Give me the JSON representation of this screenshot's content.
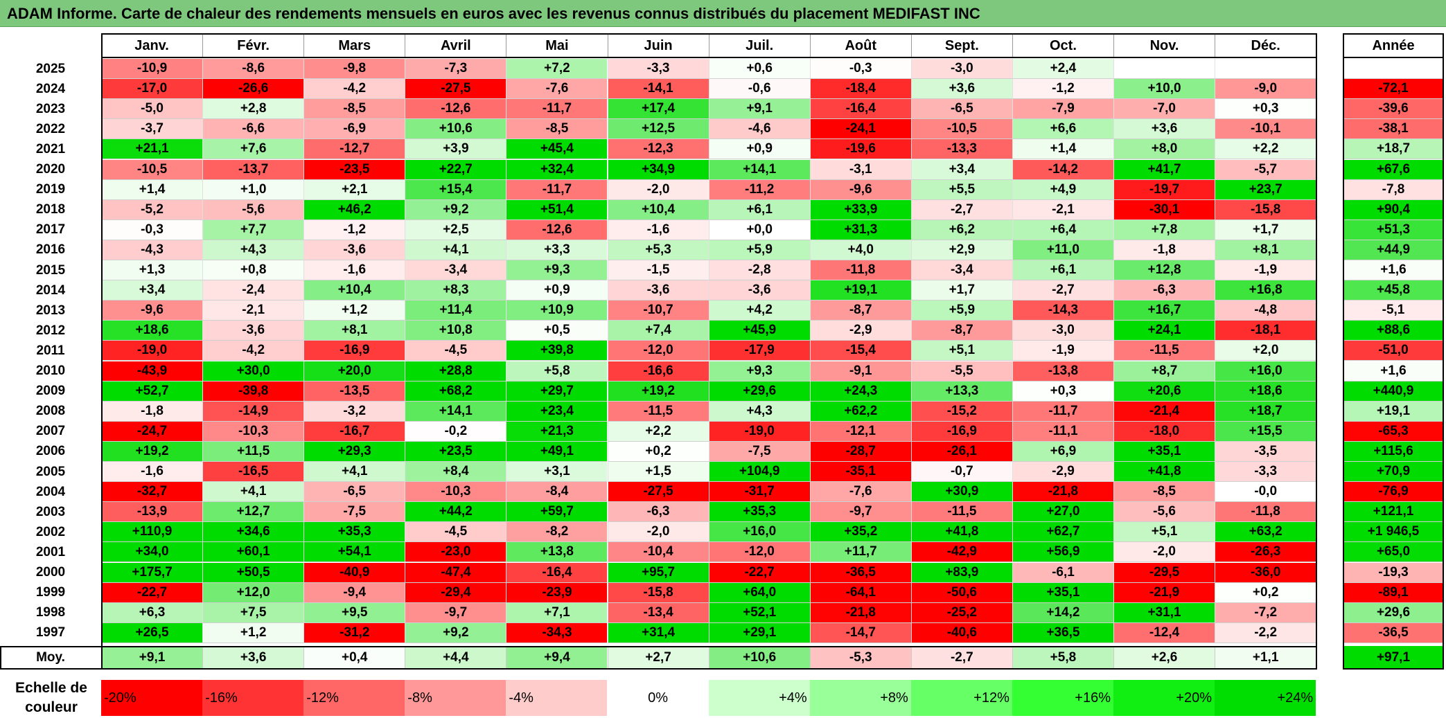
{
  "title": "ADAM Informe. Carte de chaleur des rendements mensuels en euros avec les revenus connus distribués du placement MEDIFAST INC",
  "chart_data": {
    "type": "heatmap",
    "title": "ADAM Informe. Carte de chaleur des rendements mensuels en euros avec les revenus connus distribués du placement MEDIFAST INC",
    "columns": [
      "Janv.",
      "Févr.",
      "Mars",
      "Avril",
      "Mai",
      "Juin",
      "Juil.",
      "Août",
      "Sept.",
      "Oct.",
      "Nov.",
      "Déc."
    ],
    "year_column": "Année",
    "rows": [
      {
        "year": "2025",
        "values": [
          "-10,9",
          "-8,6",
          "-9,8",
          "-7,3",
          "+7,2",
          "-3,3",
          "+0,6",
          "-0,3",
          "-3,0",
          "+2,4",
          "",
          ""
        ],
        "annual": ""
      },
      {
        "year": "2024",
        "values": [
          "-17,0",
          "-26,6",
          "-4,2",
          "-27,5",
          "-7,6",
          "-14,1",
          "-0,6",
          "-18,4",
          "+3,6",
          "-1,2",
          "+10,0",
          "-9,0"
        ],
        "annual": "-72,1"
      },
      {
        "year": "2023",
        "values": [
          "-5,0",
          "+2,8",
          "-8,5",
          "-12,6",
          "-11,7",
          "+17,4",
          "+9,1",
          "-16,4",
          "-6,5",
          "-7,9",
          "-7,0",
          "+0,3"
        ],
        "annual": "-39,6"
      },
      {
        "year": "2022",
        "values": [
          "-3,7",
          "-6,6",
          "-6,9",
          "+10,6",
          "-8,5",
          "+12,5",
          "-4,6",
          "-24,1",
          "-10,5",
          "+6,6",
          "+3,6",
          "-10,1"
        ],
        "annual": "-38,1"
      },
      {
        "year": "2021",
        "values": [
          "+21,1",
          "+7,6",
          "-12,7",
          "+3,9",
          "+45,4",
          "-12,3",
          "+0,9",
          "-19,6",
          "-13,3",
          "+1,4",
          "+8,0",
          "+2,2"
        ],
        "annual": "+18,7"
      },
      {
        "year": "2020",
        "values": [
          "-10,5",
          "-13,7",
          "-23,5",
          "+22,7",
          "+32,4",
          "+34,9",
          "+14,1",
          "-3,1",
          "+3,4",
          "-14,2",
          "+41,7",
          "-5,7"
        ],
        "annual": "+67,6"
      },
      {
        "year": "2019",
        "values": [
          "+1,4",
          "+1,0",
          "+2,1",
          "+15,4",
          "-11,7",
          "-2,0",
          "-11,2",
          "-9,6",
          "+5,5",
          "+4,9",
          "-19,7",
          "+23,7"
        ],
        "annual": "-7,8"
      },
      {
        "year": "2018",
        "values": [
          "-5,2",
          "-5,6",
          "+46,2",
          "+9,2",
          "+51,4",
          "+10,4",
          "+6,1",
          "+33,9",
          "-2,7",
          "-2,1",
          "-30,1",
          "-15,8"
        ],
        "annual": "+90,4"
      },
      {
        "year": "2017",
        "values": [
          "-0,3",
          "+7,7",
          "-1,2",
          "+2,5",
          "-12,6",
          "-1,6",
          "+0,0",
          "+31,3",
          "+6,2",
          "+6,4",
          "+7,8",
          "+1,7"
        ],
        "annual": "+51,3"
      },
      {
        "year": "2016",
        "values": [
          "-4,3",
          "+4,3",
          "-3,6",
          "+4,1",
          "+3,3",
          "+5,3",
          "+5,9",
          "+4,0",
          "+2,9",
          "+11,0",
          "-1,8",
          "+8,1"
        ],
        "annual": "+44,9"
      },
      {
        "year": "2015",
        "values": [
          "+1,3",
          "+0,8",
          "-1,6",
          "-3,4",
          "+9,3",
          "-1,5",
          "-2,8",
          "-11,8",
          "-3,4",
          "+6,1",
          "+12,8",
          "-1,9"
        ],
        "annual": "+1,6"
      },
      {
        "year": "2014",
        "values": [
          "+3,4",
          "-2,4",
          "+10,4",
          "+8,3",
          "+0,9",
          "-3,6",
          "-3,6",
          "+19,1",
          "+1,7",
          "-2,7",
          "-6,3",
          "+16,8"
        ],
        "annual": "+45,8"
      },
      {
        "year": "2013",
        "values": [
          "-9,6",
          "-2,1",
          "+1,2",
          "+11,4",
          "+10,9",
          "-10,7",
          "+4,2",
          "-8,7",
          "+5,9",
          "-14,3",
          "+16,7",
          "-4,8"
        ],
        "annual": "-5,1"
      },
      {
        "year": "2012",
        "values": [
          "+18,6",
          "-3,6",
          "+8,1",
          "+10,8",
          "+0,5",
          "+7,4",
          "+45,9",
          "-2,9",
          "-8,7",
          "-3,0",
          "+24,1",
          "-18,1"
        ],
        "annual": "+88,6"
      },
      {
        "year": "2011",
        "values": [
          "-19,0",
          "-4,2",
          "-16,9",
          "-4,5",
          "+39,8",
          "-12,0",
          "-17,9",
          "-15,4",
          "+5,1",
          "-1,9",
          "-11,5",
          "+2,0"
        ],
        "annual": "-51,0"
      },
      {
        "year": "2010",
        "values": [
          "-43,9",
          "+30,0",
          "+20,0",
          "+28,8",
          "+5,8",
          "-16,6",
          "+9,3",
          "-9,1",
          "-5,5",
          "-13,8",
          "+8,7",
          "+16,0"
        ],
        "annual": "+1,6"
      },
      {
        "year": "2009",
        "values": [
          "+52,7",
          "-39,8",
          "-13,5",
          "+68,2",
          "+29,7",
          "+19,2",
          "+29,6",
          "+24,3",
          "+13,3",
          "+0,3",
          "+20,6",
          "+18,6"
        ],
        "annual": "+440,9"
      },
      {
        "year": "2008",
        "values": [
          "-1,8",
          "-14,9",
          "-3,2",
          "+14,1",
          "+23,4",
          "-11,5",
          "+4,3",
          "+62,2",
          "-15,2",
          "-11,7",
          "-21,4",
          "+18,7"
        ],
        "annual": "+19,1"
      },
      {
        "year": "2007",
        "values": [
          "-24,7",
          "-10,3",
          "-16,7",
          "-0,2",
          "+21,3",
          "+2,2",
          "-19,0",
          "-12,1",
          "-16,9",
          "-11,1",
          "-18,0",
          "+15,5"
        ],
        "annual": "-65,3"
      },
      {
        "year": "2006",
        "values": [
          "+19,2",
          "+11,5",
          "+29,3",
          "+23,5",
          "+49,1",
          "+0,2",
          "-7,5",
          "-28,7",
          "-26,1",
          "+6,9",
          "+35,1",
          "-3,5"
        ],
        "annual": "+115,6"
      },
      {
        "year": "2005",
        "values": [
          "-1,6",
          "-16,5",
          "+4,1",
          "+8,4",
          "+3,1",
          "+1,5",
          "+104,9",
          "-35,1",
          "-0,7",
          "-2,9",
          "+41,8",
          "-3,3"
        ],
        "annual": "+70,9"
      },
      {
        "year": "2004",
        "values": [
          "-32,7",
          "+4,1",
          "-6,5",
          "-10,3",
          "-8,4",
          "-27,5",
          "-31,7",
          "-7,6",
          "+30,9",
          "-21,8",
          "-8,5",
          "-0,0"
        ],
        "annual": "-76,9"
      },
      {
        "year": "2003",
        "values": [
          "-13,9",
          "+12,7",
          "-7,5",
          "+44,2",
          "+59,7",
          "-6,3",
          "+35,3",
          "-9,7",
          "-11,5",
          "+27,0",
          "-5,6",
          "-11,8"
        ],
        "annual": "+121,1"
      },
      {
        "year": "2002",
        "values": [
          "+110,9",
          "+34,6",
          "+35,3",
          "-4,5",
          "-8,2",
          "-2,0",
          "+16,0",
          "+35,2",
          "+41,8",
          "+62,7",
          "+5,1",
          "+63,2"
        ],
        "annual": "+1 946,5"
      },
      {
        "year": "2001",
        "values": [
          "+34,0",
          "+60,1",
          "+54,1",
          "-23,0",
          "+13,8",
          "-10,4",
          "-12,0",
          "+11,7",
          "-42,9",
          "+56,9",
          "-2,0",
          "-26,3"
        ],
        "annual": "+65,0"
      },
      {
        "year": "2000",
        "values": [
          "+175,7",
          "+50,5",
          "-40,9",
          "-47,4",
          "-16,4",
          "+95,7",
          "-22,7",
          "-36,5",
          "+83,9",
          "-6,1",
          "-29,5",
          "-36,0"
        ],
        "annual": "-19,3"
      },
      {
        "year": "1999",
        "values": [
          "-22,7",
          "+12,0",
          "-9,4",
          "-29,4",
          "-23,9",
          "-15,8",
          "+64,0",
          "-64,1",
          "-50,6",
          "+35,1",
          "-21,9",
          "+0,2"
        ],
        "annual": "-89,1"
      },
      {
        "year": "1998",
        "values": [
          "+6,3",
          "+7,5",
          "+9,5",
          "-9,7",
          "+7,1",
          "-13,4",
          "+52,1",
          "-21,8",
          "-25,2",
          "+14,2",
          "+31,1",
          "-7,2"
        ],
        "annual": "+29,6"
      },
      {
        "year": "1997",
        "values": [
          "+26,5",
          "+1,2",
          "-31,2",
          "+9,2",
          "-34,3",
          "+31,4",
          "+29,1",
          "-14,7",
          "-40,6",
          "+36,5",
          "-12,4",
          "-2,2"
        ],
        "annual": "-36,5"
      }
    ],
    "average": {
      "label": "Moy.",
      "values": [
        "+9,1",
        "+3,6",
        "+0,4",
        "+4,4",
        "+9,4",
        "+2,7",
        "+10,6",
        "-5,3",
        "-2,7",
        "+5,8",
        "+2,6",
        "+1,1"
      ],
      "annual": "+97,1"
    },
    "color_scale": {
      "label": "Echelle de couleur",
      "steps": [
        "-20%",
        "-16%",
        "-12%",
        "-8%",
        "-4%",
        "0%",
        "+4%",
        "+8%",
        "+12%",
        "+16%",
        "+20%",
        "+24%"
      ],
      "colors": [
        "#ff0000",
        "#ff3333",
        "#ff6666",
        "#ff9999",
        "#ffcccc",
        "#ffffff",
        "#ccffcc",
        "#99ff99",
        "#66ff66",
        "#33ff33",
        "#11ee11",
        "#00dd00"
      ]
    }
  }
}
